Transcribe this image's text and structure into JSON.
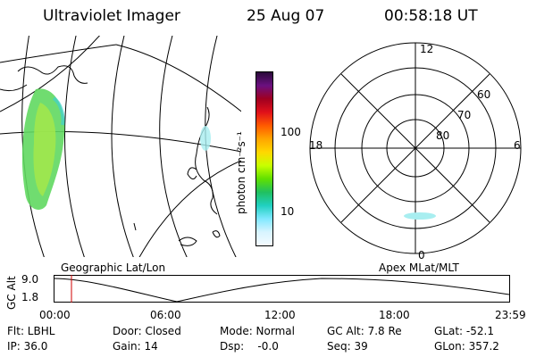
{
  "header": {
    "title": "Ultraviolet Imager",
    "date": "25 Aug 07",
    "time": "00:58:18 UT"
  },
  "colorbar": {
    "unit": "photon cm⁻²s⁻¹",
    "ticks": [
      "100",
      "10"
    ],
    "colors": [
      "#2a0a3a",
      "#6b1080",
      "#a00020",
      "#e0101a",
      "#ff5a00",
      "#ffa500",
      "#ffd800",
      "#c8ff00",
      "#60e000",
      "#20c060",
      "#20d0c0",
      "#80e8ff",
      "#d8f4ff",
      "#f4fbff"
    ]
  },
  "geo_map": {
    "label": "Geographic Lat/Lon",
    "aurora_colors": [
      "#40c040",
      "#a0e040",
      "#40d0d0"
    ]
  },
  "polar_plot": {
    "label": "Apex MLat/MLT",
    "mlt_labels": {
      "top": "12",
      "left": "18",
      "right": "6",
      "bottom": "0"
    },
    "lat_labels": [
      "60",
      "70",
      "80"
    ]
  },
  "orbit": {
    "ylabel": "GC Alt",
    "y_ticks": [
      "9.0",
      "1.8"
    ],
    "x_ticks": [
      "00:00",
      "06:00",
      "12:00",
      "18:00",
      "23:59"
    ],
    "cursor_color": "#d00000"
  },
  "info": {
    "flt": "Flt: LBHL",
    "ip": "IP: 36.0",
    "door": "Door: Closed",
    "gain": "Gain: 14",
    "mode": "Mode: Normal",
    "dsp": "Dsp:    -0.0",
    "gcalt": "GC Alt: 7.8 Re",
    "seq": "Seq: 39",
    "glat": "GLat: -52.1",
    "glon": "GLon: 357.2"
  }
}
